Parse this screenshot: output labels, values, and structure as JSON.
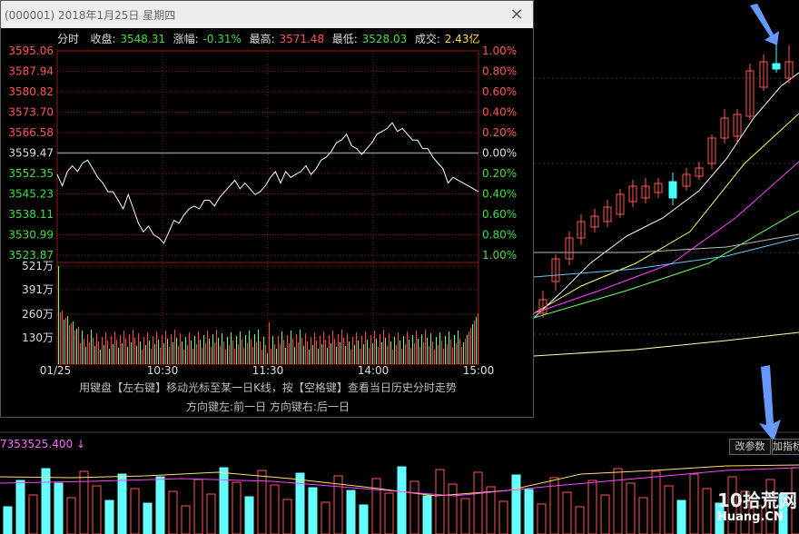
{
  "window": {
    "title": "(000001) 2018年1月25日 星期四",
    "close_glyph": "×"
  },
  "info": {
    "mode": "分时",
    "close_label": "收盘:",
    "close_value": "3548.31",
    "change_label": "涨幅:",
    "change_value": "-0.31%",
    "high_label": "最高:",
    "high_value": "3571.48",
    "low_label": "最低:",
    "low_value": "3528.03",
    "turnover_label": "成交:",
    "turnover_value": "2.43亿"
  },
  "price_axis": {
    "left_labels": [
      "3595.06",
      "3587.94",
      "3580.82",
      "3573.70",
      "3566.58",
      "3559.47",
      "3552.35",
      "3545.23",
      "3538.11",
      "3530.99",
      "3523.87"
    ],
    "right_labels": [
      "1.00%",
      "0.80%",
      "0.60%",
      "0.40%",
      "0.20%",
      "0.00%",
      "0.20%",
      "0.40%",
      "0.60%",
      "0.80%",
      "1.00%"
    ]
  },
  "volume_axis": {
    "labels": [
      "521万",
      "391万",
      "260万",
      "130万"
    ]
  },
  "time_axis": {
    "labels": [
      "01/25",
      "10:30",
      "11:30",
      "14:00",
      "15:00"
    ]
  },
  "hints": {
    "line1": "用键盘【左右键】移动光标至某一日K线，按【空格键】查看当日历史分时走势",
    "line2": "方向键左:前一日    方向键右:后一日"
  },
  "lower_panel": {
    "value_label": "7353525.400  ↓",
    "btn_params": "改参数",
    "btn_add": "加指标"
  },
  "watermark": {
    "text": "10拾荒网",
    "sub": "Huang.CN"
  },
  "colors": {
    "up": "#ff4444",
    "down": "#44ffff",
    "price_line": "#ffffff",
    "grid": "#8a1a1a",
    "label_red": "#ff5555",
    "label_green": "#44dd44"
  },
  "chart_data": {
    "type": "line",
    "title": "",
    "x_ticks": [
      "01/25",
      "10:30",
      "11:30",
      "14:00",
      "15:00"
    ],
    "ylim": [
      3523.87,
      3595.06
    ],
    "reference_price": 3559.47,
    "series": [
      {
        "values": [
          3552,
          3548,
          3553,
          3555,
          3553,
          3556,
          3557,
          3554,
          3551,
          3549,
          3546,
          3546,
          3543,
          3540,
          3545,
          3540,
          3535,
          3532,
          3534,
          3531,
          3530,
          3528,
          3532,
          3536,
          3535,
          3538,
          3540,
          3541,
          3540,
          3543,
          3543,
          3541,
          3544,
          3546,
          3548,
          3550,
          3547,
          3549,
          3547,
          3545,
          3546,
          3548,
          3551,
          3553,
          3549,
          3553,
          3551,
          3552,
          3553,
          3555,
          3552,
          3554,
          3557,
          3558,
          3560,
          3563,
          3564,
          3566,
          3562,
          3561,
          3559,
          3561,
          3563,
          3566,
          3567,
          3568,
          3570,
          3567,
          3568,
          3566,
          3564,
          3564,
          3561,
          3561,
          3558,
          3556,
          3554,
          3549,
          3551,
          3550,
          3549,
          3548,
          3547,
          3546
        ]
      }
    ]
  }
}
